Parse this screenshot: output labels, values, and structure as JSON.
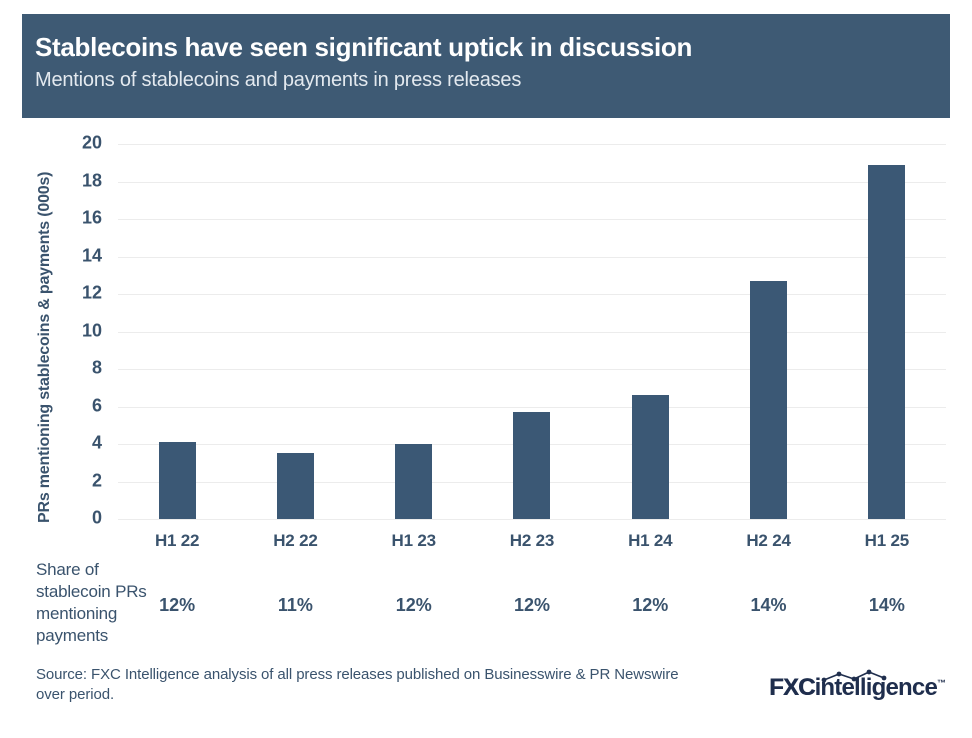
{
  "header": {
    "title": "Stablecoins have seen significant uptick in discussion",
    "subtitle": "Mentions of stablecoins and payments in press releases"
  },
  "chart_data": {
    "type": "bar",
    "title": "Stablecoins have seen significant uptick in discussion",
    "subtitle": "Mentions of stablecoins and payments in press releases",
    "categories": [
      "H1 22",
      "H2 22",
      "H1 23",
      "H2 23",
      "H1 24",
      "H2 24",
      "H1 25"
    ],
    "values": [
      4.1,
      3.5,
      4.0,
      5.7,
      6.6,
      12.7,
      18.9
    ],
    "xlabel": "",
    "ylabel": "PRs mentioning stablecoins & payments (000s)",
    "ylim": [
      0,
      20
    ],
    "ytick_step": 2,
    "grid": "horizontal",
    "legend": "none",
    "bar_color": "#3b5875",
    "share_row": {
      "label": "Share of stablecoin PRs mentioning payments",
      "values": [
        "12%",
        "11%",
        "12%",
        "12%",
        "12%",
        "14%",
        "14%"
      ]
    }
  },
  "footer": {
    "source": "Source: FXC Intelligence analysis of all press releases published on Businesswire & PR Newswire over period.",
    "logo": {
      "fxc": "FXC",
      "intelligence": "intelligence",
      "tm": "™"
    }
  },
  "colors": {
    "banner_bg": "#3e5a74",
    "bar": "#3b5875",
    "text_dark": "#3a536d",
    "gridline": "#ececec",
    "logo_navy": "#1f2e4d",
    "subtitle_text": "#e3e9ef"
  }
}
